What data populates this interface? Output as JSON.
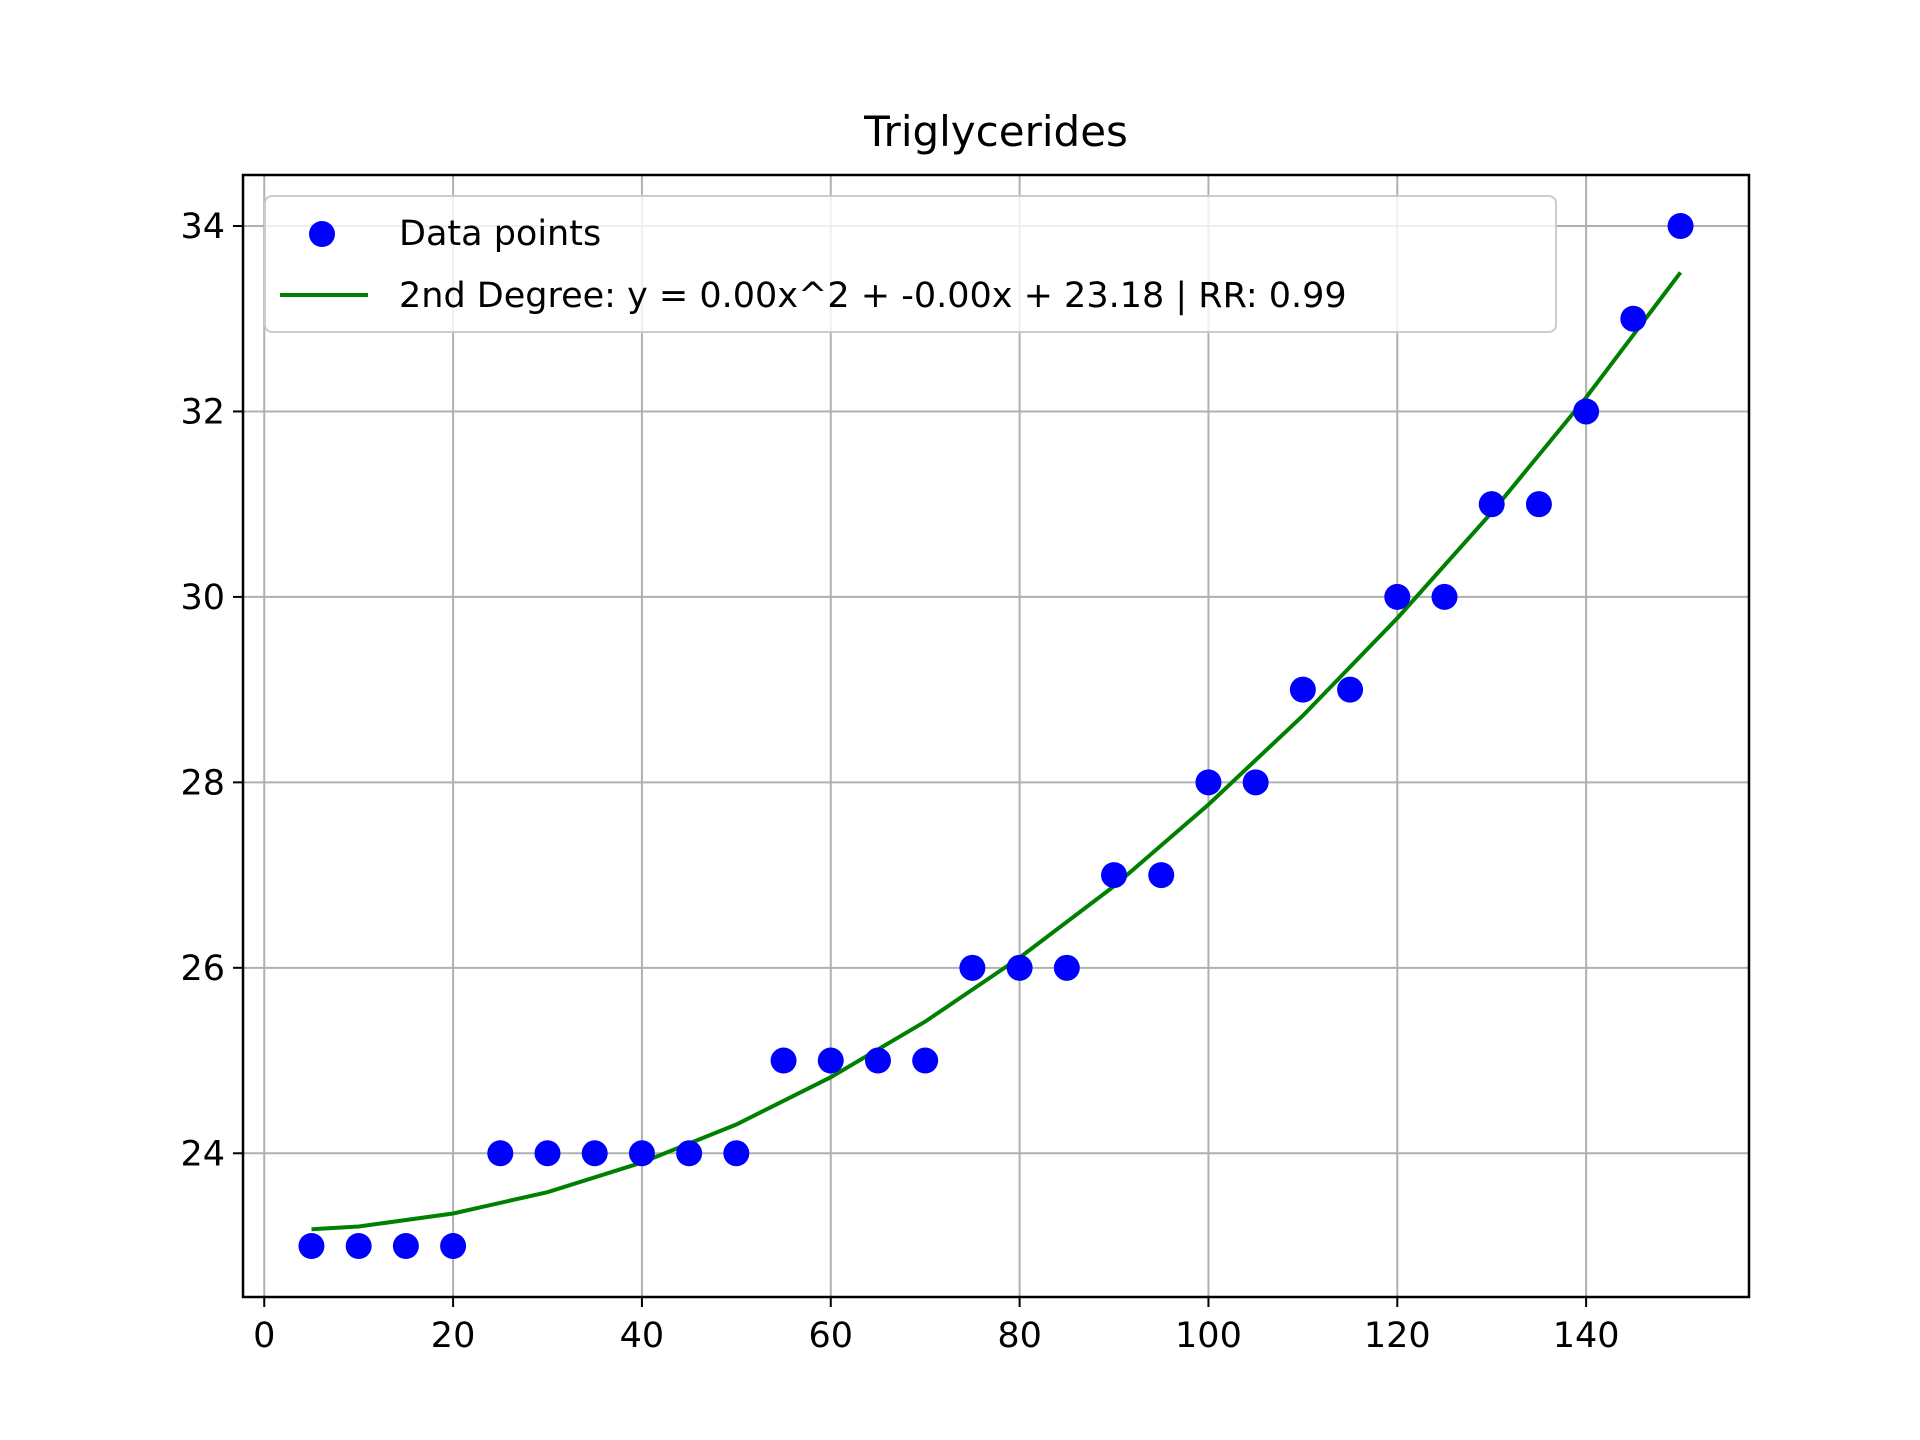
{
  "chart_data": {
    "type": "scatter",
    "title": "Triglycerides",
    "xlabel": "",
    "ylabel": "",
    "xlim": [
      -2.25,
      157.25
    ],
    "ylim": [
      22.45,
      34.55
    ],
    "xticks": [
      0,
      20,
      40,
      60,
      80,
      100,
      120,
      140
    ],
    "yticks": [
      24,
      26,
      28,
      30,
      32,
      34
    ],
    "grid": true,
    "legend_position": "upper-left",
    "series": [
      {
        "name": "Data points",
        "kind": "scatter",
        "color": "#0000ff",
        "x": [
          5,
          10,
          15,
          20,
          25,
          30,
          35,
          40,
          45,
          50,
          55,
          60,
          65,
          70,
          75,
          80,
          85,
          90,
          95,
          100,
          105,
          110,
          115,
          120,
          125,
          130,
          135,
          140,
          145,
          150
        ],
        "y": [
          23,
          23,
          23,
          23,
          24,
          24,
          24,
          24,
          24,
          24,
          25,
          25,
          25,
          25,
          26,
          26,
          26,
          27,
          27,
          28,
          28,
          29,
          29,
          30,
          30,
          31,
          31,
          32,
          33,
          34
        ]
      },
      {
        "name": "2nd Degree: y = 0.00x^2 + -0.00x + 23.18 | RR: 0.99",
        "kind": "line",
        "color": "#008000",
        "x": [
          5,
          10,
          20,
          30,
          40,
          50,
          60,
          70,
          80,
          90,
          100,
          110,
          120,
          130,
          140,
          150
        ],
        "y": [
          23.18,
          23.21,
          23.35,
          23.58,
          23.9,
          24.31,
          24.82,
          25.42,
          26.11,
          26.88,
          27.76,
          28.72,
          29.77,
          30.91,
          32.15,
          33.5
        ]
      }
    ]
  }
}
